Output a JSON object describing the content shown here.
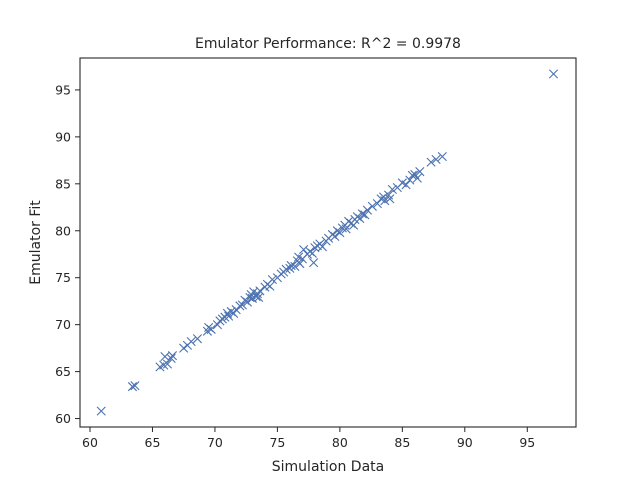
{
  "chart_data": {
    "type": "scatter",
    "title": "Emulator Performance: R^2 = 0.9978",
    "xlabel": "Simulation Data",
    "ylabel": "Emulator Fit",
    "xlim": [
      59.2,
      98.9
    ],
    "ylim": [
      59.1,
      98.4
    ],
    "xticks": [
      60,
      65,
      70,
      75,
      80,
      85,
      90,
      95
    ],
    "yticks": [
      60,
      65,
      70,
      75,
      80,
      85,
      90,
      95
    ],
    "marker": "x",
    "color": "#4c72b0",
    "grid": false,
    "series": [
      {
        "points": [
          [
            60.9,
            60.8
          ],
          [
            63.4,
            63.4
          ],
          [
            63.6,
            63.5
          ],
          [
            65.6,
            65.5
          ],
          [
            65.9,
            65.7
          ],
          [
            66.0,
            66.6
          ],
          [
            66.2,
            65.8
          ],
          [
            66.5,
            66.4
          ],
          [
            66.6,
            66.7
          ],
          [
            67.5,
            67.5
          ],
          [
            67.8,
            67.8
          ],
          [
            68.1,
            68.2
          ],
          [
            68.6,
            68.5
          ],
          [
            69.4,
            69.3
          ],
          [
            69.5,
            69.7
          ],
          [
            69.7,
            69.5
          ],
          [
            70.2,
            70.0
          ],
          [
            70.4,
            70.4
          ],
          [
            70.6,
            70.6
          ],
          [
            70.8,
            70.8
          ],
          [
            71.0,
            71.2
          ],
          [
            71.1,
            70.9
          ],
          [
            71.3,
            71.4
          ],
          [
            71.5,
            71.2
          ],
          [
            71.7,
            71.6
          ],
          [
            72.0,
            72.0
          ],
          [
            72.2,
            72.1
          ],
          [
            72.4,
            72.6
          ],
          [
            72.6,
            72.4
          ],
          [
            72.8,
            72.9
          ],
          [
            72.9,
            73.2
          ],
          [
            73.0,
            72.8
          ],
          [
            73.1,
            73.5
          ],
          [
            73.3,
            73.0
          ],
          [
            73.4,
            73.3
          ],
          [
            73.5,
            72.9
          ],
          [
            73.6,
            73.6
          ],
          [
            74.0,
            74.0
          ],
          [
            74.2,
            74.3
          ],
          [
            74.4,
            74.1
          ],
          [
            74.6,
            74.8
          ],
          [
            75.0,
            75.0
          ],
          [
            75.3,
            75.4
          ],
          [
            75.5,
            75.6
          ],
          [
            75.7,
            75.9
          ],
          [
            76.0,
            76.0
          ],
          [
            76.1,
            76.3
          ],
          [
            76.4,
            76.2
          ],
          [
            76.6,
            76.8
          ],
          [
            76.7,
            77.2
          ],
          [
            76.8,
            76.5
          ],
          [
            77.0,
            77.0
          ],
          [
            77.1,
            78.0
          ],
          [
            77.4,
            77.5
          ],
          [
            77.6,
            77.8
          ],
          [
            77.8,
            77.6
          ],
          [
            77.9,
            76.6
          ],
          [
            78.0,
            78.2
          ],
          [
            78.2,
            78.4
          ],
          [
            78.4,
            78.6
          ],
          [
            78.6,
            78.3
          ],
          [
            78.9,
            78.9
          ],
          [
            79.1,
            79.2
          ],
          [
            79.4,
            79.6
          ],
          [
            79.6,
            79.4
          ],
          [
            79.8,
            80.0
          ],
          [
            80.0,
            79.8
          ],
          [
            80.2,
            80.3
          ],
          [
            80.4,
            80.6
          ],
          [
            80.5,
            80.2
          ],
          [
            80.7,
            81.0
          ],
          [
            80.9,
            80.8
          ],
          [
            81.1,
            80.6
          ],
          [
            81.2,
            81.2
          ],
          [
            81.4,
            81.5
          ],
          [
            81.6,
            81.3
          ],
          [
            81.8,
            81.8
          ],
          [
            82.0,
            81.7
          ],
          [
            82.2,
            82.2
          ],
          [
            82.6,
            82.6
          ],
          [
            83.0,
            82.9
          ],
          [
            83.3,
            83.4
          ],
          [
            83.5,
            83.6
          ],
          [
            83.6,
            83.2
          ],
          [
            83.9,
            83.8
          ],
          [
            84.0,
            83.4
          ],
          [
            84.2,
            84.4
          ],
          [
            84.6,
            84.6
          ],
          [
            85.0,
            85.1
          ],
          [
            85.3,
            84.9
          ],
          [
            85.6,
            85.4
          ],
          [
            85.8,
            85.9
          ],
          [
            86.0,
            86.0
          ],
          [
            86.2,
            85.6
          ],
          [
            86.4,
            86.3
          ],
          [
            87.3,
            87.3
          ],
          [
            87.7,
            87.6
          ],
          [
            88.2,
            87.9
          ],
          [
            97.1,
            96.7
          ]
        ]
      }
    ]
  }
}
